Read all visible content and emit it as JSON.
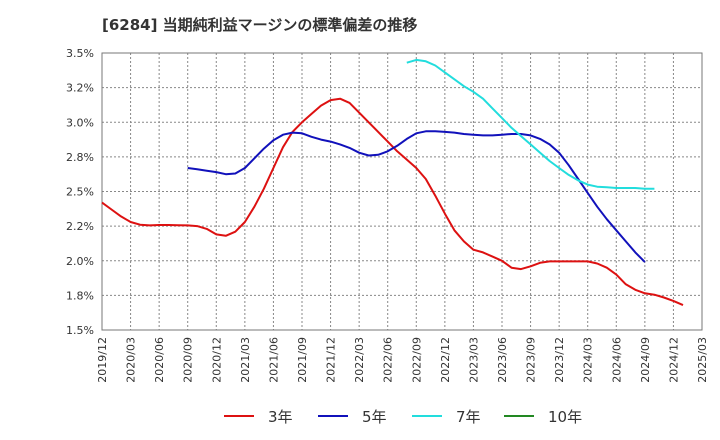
{
  "chart_data": {
    "type": "line",
    "title": "[6284]  当期純利益マージンの標準偏差の推移",
    "ylim": [
      1.5,
      3.5
    ],
    "yticks": [
      "3.5%",
      "3.2%",
      "3.0%",
      "2.8%",
      "2.5%",
      "2.2%",
      "2.0%",
      "1.8%",
      "1.5%"
    ],
    "ytick_values": [
      3.5,
      3.25,
      3.0,
      2.75,
      2.5,
      2.25,
      2.0,
      1.75,
      1.5
    ],
    "xticks": [
      "2019/12",
      "2020/03",
      "2020/06",
      "2020/09",
      "2020/12",
      "2021/03",
      "2021/06",
      "2021/09",
      "2021/12",
      "2022/03",
      "2022/06",
      "2022/09",
      "2022/12",
      "2023/03",
      "2023/06",
      "2023/09",
      "2023/12",
      "2024/03",
      "2024/06",
      "2024/09",
      "2024/12",
      "2025/03"
    ],
    "grid": true,
    "legend_position": "bottom",
    "series": [
      {
        "name": "3年",
        "color": "#dd1111",
        "start": "2019/12",
        "values": [
          2.42,
          2.37,
          2.32,
          2.28,
          2.26,
          2.255,
          2.258,
          2.258,
          2.257,
          2.255,
          2.25,
          2.23,
          2.19,
          2.18,
          2.21,
          2.28,
          2.39,
          2.52,
          2.67,
          2.82,
          2.93,
          3.0,
          3.06,
          3.12,
          3.16,
          3.17,
          3.14,
          3.07,
          3.0,
          2.93,
          2.86,
          2.79,
          2.73,
          2.67,
          2.59,
          2.47,
          2.34,
          2.22,
          2.14,
          2.08,
          2.06,
          2.03,
          2.0,
          1.95,
          1.94,
          1.96,
          1.985,
          1.995,
          1.995,
          1.995,
          1.995,
          1.995,
          1.98,
          1.95,
          1.9,
          1.83,
          1.79,
          1.765,
          1.755,
          1.735,
          1.71,
          1.68
        ]
      },
      {
        "name": "5年",
        "color": "#1111bb",
        "start": "2020/09",
        "values": [
          2.67,
          2.66,
          2.65,
          2.64,
          2.625,
          2.63,
          2.67,
          2.74,
          2.81,
          2.87,
          2.91,
          2.925,
          2.92,
          2.895,
          2.875,
          2.86,
          2.84,
          2.815,
          2.78,
          2.76,
          2.765,
          2.79,
          2.83,
          2.88,
          2.92,
          2.935,
          2.935,
          2.93,
          2.925,
          2.915,
          2.91,
          2.905,
          2.905,
          2.91,
          2.915,
          2.915,
          2.905,
          2.88,
          2.84,
          2.78,
          2.69,
          2.59,
          2.49,
          2.39,
          2.3,
          2.22,
          2.14,
          2.06,
          1.99
        ]
      },
      {
        "name": "7年",
        "color": "#22dddd",
        "start": "2022/08",
        "values": [
          3.43,
          3.45,
          3.44,
          3.41,
          3.36,
          3.31,
          3.26,
          3.22,
          3.17,
          3.1,
          3.03,
          2.96,
          2.9,
          2.84,
          2.78,
          2.72,
          2.67,
          2.62,
          2.58,
          2.55,
          2.535,
          2.53,
          2.525,
          2.525,
          2.525,
          2.52,
          2.52
        ]
      },
      {
        "name": "10年",
        "color": "#228822",
        "start": "2019/12",
        "values": []
      }
    ]
  }
}
